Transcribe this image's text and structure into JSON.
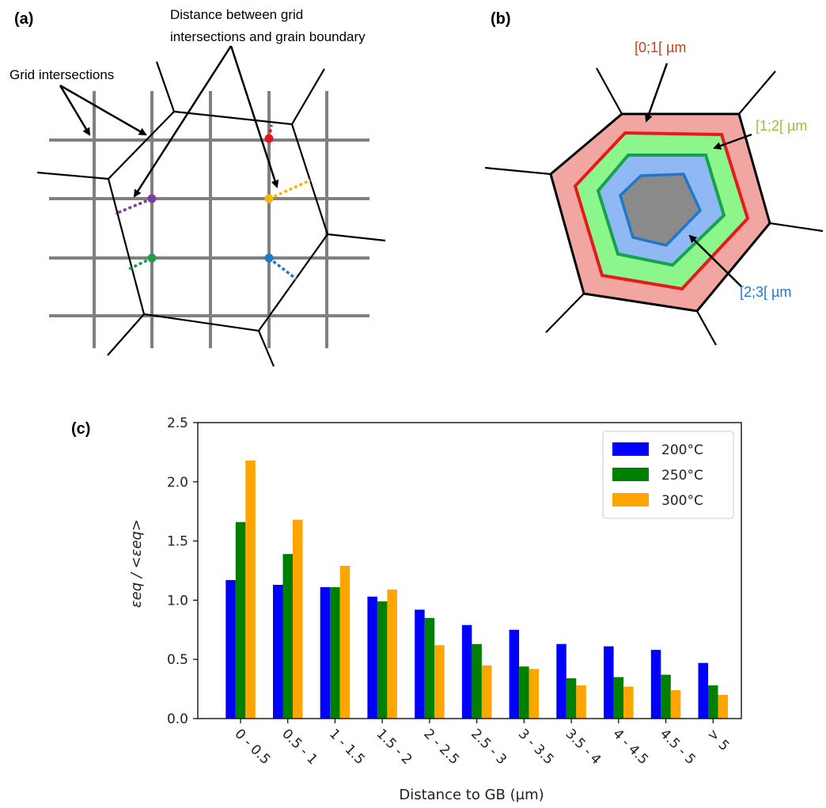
{
  "panels": {
    "a": {
      "label": "(a)",
      "annotation_grid": "Grid intersections",
      "annotation_distance_line1": "Distance between grid",
      "annotation_distance_line2": "intersections and grain boundary",
      "point_colors": [
        "#e8141c",
        "#f5b800",
        "#7b3fa0",
        "#1e9e4a",
        "#1f78c8"
      ]
    },
    "b": {
      "label": "(b)",
      "rings": [
        {
          "text": "[0;1[ µm",
          "color": "#d13b10",
          "fill": "#f2a6a1",
          "stroke": "#e51a1a"
        },
        {
          "text": "[1;2[ µm",
          "color": "#8dc63f",
          "fill": "#8cf58c",
          "stroke": "#17a34a"
        },
        {
          "text": "[2;3[ µm",
          "color": "#1f78c8",
          "fill": "#8fb8f5",
          "stroke": "#1f78c8"
        }
      ],
      "core_fill": "#8a8a8a"
    },
    "c": {
      "label": "(c)"
    }
  },
  "chart_data": {
    "type": "bar",
    "title": "",
    "xlabel": "Distance to GB (µm)",
    "ylabel": "εeq / <εeq>",
    "ylim": [
      0,
      2.5
    ],
    "yticks": [
      "0.0",
      "0.5",
      "1.0",
      "1.5",
      "2.0",
      "2.5"
    ],
    "grid": false,
    "legend_position": "top-right",
    "categories": [
      "0 - 0.5",
      "0.5 - 1",
      "1 - 1.5",
      "1.5 - 2",
      "2 - 2.5",
      "2.5 - 3",
      "3 - 3.5",
      "3.5 - 4",
      "4 - 4.5",
      "4.5 - 5",
      "> 5"
    ],
    "series": [
      {
        "name": "200°C",
        "color": "#0000ff",
        "values": [
          1.17,
          1.13,
          1.11,
          1.03,
          0.92,
          0.79,
          0.75,
          0.63,
          0.61,
          0.58,
          0.47
        ]
      },
      {
        "name": "250°C",
        "color": "#008000",
        "values": [
          1.66,
          1.39,
          1.11,
          0.99,
          0.85,
          0.63,
          0.44,
          0.34,
          0.35,
          0.37,
          0.28
        ]
      },
      {
        "name": "300°C",
        "color": "#ffa500",
        "values": [
          2.18,
          1.68,
          1.29,
          1.09,
          0.62,
          0.45,
          0.42,
          0.28,
          0.27,
          0.24,
          0.2
        ]
      }
    ]
  }
}
